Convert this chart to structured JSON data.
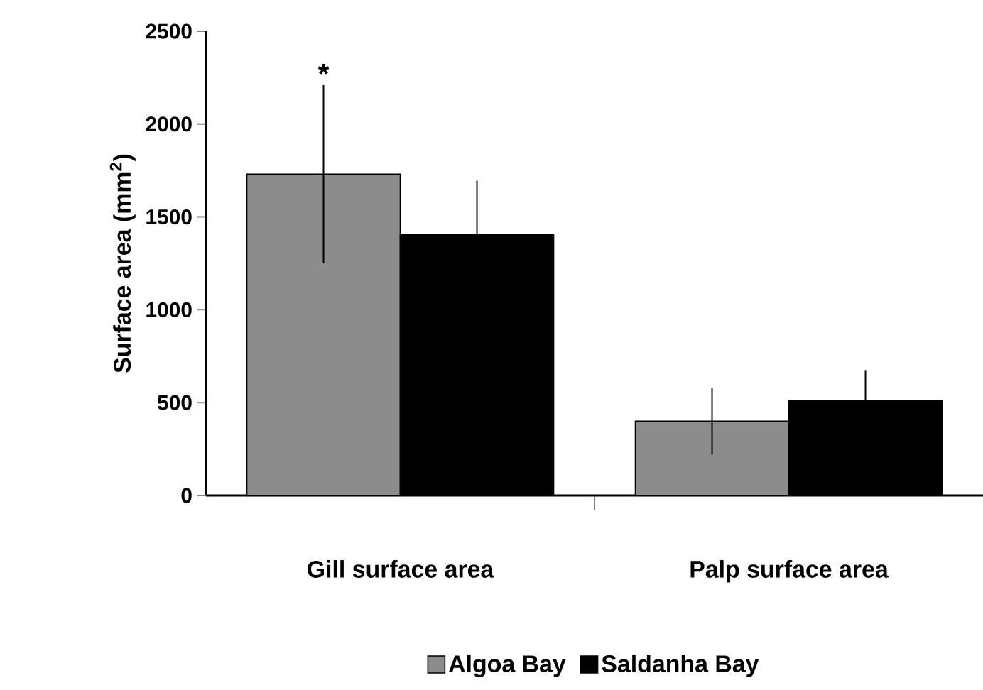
{
  "chart_data": {
    "type": "bar",
    "ylabel": "Surface area (mm$^{2}$)",
    "categories": [
      "Gill surface area",
      "Palp surface area"
    ],
    "series": [
      {
        "name": "Algoa Bay",
        "color": "#8c8c8c",
        "values": [
          1730,
          400
        ],
        "errors": [
          480,
          180
        ]
      },
      {
        "name": "Saldanha Bay",
        "color": "#000000",
        "values": [
          1405,
          510
        ],
        "errors": [
          290,
          165
        ]
      }
    ],
    "ylim": [
      0,
      2500
    ],
    "yticks": [
      0,
      500,
      1000,
      1500,
      2000,
      2500
    ],
    "legend": "bottom",
    "grid": false,
    "annotations": [
      "*"
    ]
  }
}
